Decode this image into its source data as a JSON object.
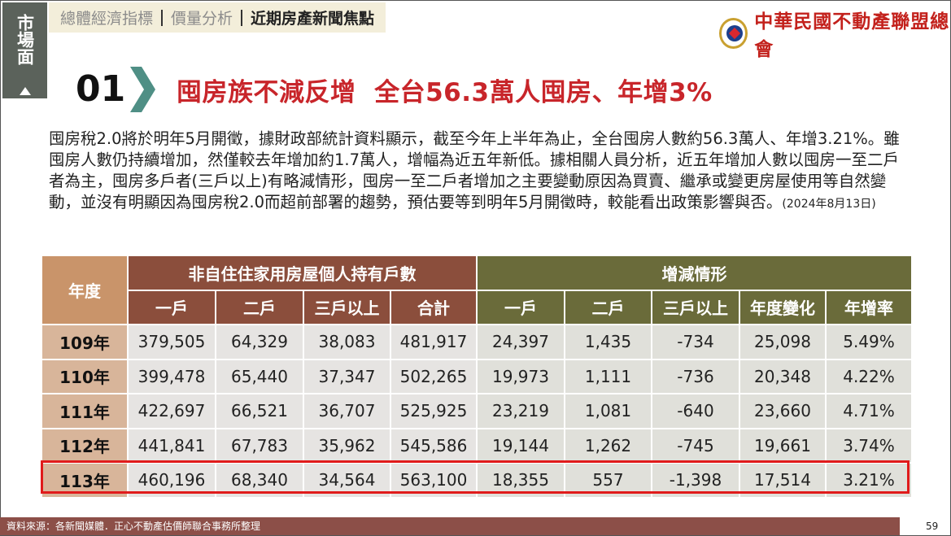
{
  "side_tag": "市場面",
  "nav": {
    "items": [
      "總體經濟指標",
      "價量分析",
      "近期房產新聞焦點"
    ],
    "active_index": 2
  },
  "logo": {
    "name": "中華民國不動產聯盟總會"
  },
  "heading": {
    "number": "01",
    "title": "囤房族不減反增  全台56.3萬人囤房、年增3%"
  },
  "body": {
    "text": "囤房稅2.0將於明年5月開徵，據財政部統計資料顯示，截至今年上半年為止，全台囤房人數約56.3萬人、年增3.21%。雖囤房人數仍持續增加，然僅較去年增加約1.7萬人，增幅為近五年新低。據相關人員分析，近五年增加人數以囤房一至二戶者為主，囤房多戶者(三戶以上)有略減情形，囤房一至二戶者增加之主要變動原因為買賣、繼承或變更房屋使用等自然變動，並沒有明顯因為囤房稅2.0而超前部署的趨勢，預估要等到明年5月開徵時，較能看出政策影響與否。",
    "date": "(2024年8月13日)"
  },
  "table": {
    "year_header": "年度",
    "group1": "非自住住家用房屋個人持有戶數",
    "group2": "增減情形",
    "cols1": [
      "一戶",
      "二戶",
      "三戶以上",
      "合計"
    ],
    "cols2": [
      "一戶",
      "二戶",
      "三戶以上",
      "年度變化",
      "年增率"
    ],
    "rows": [
      {
        "year": "109年",
        "vals": [
          "379,505",
          "64,329",
          "38,083",
          "481,917",
          "24,397",
          "1,435",
          "-734",
          "25,098",
          "5.49%"
        ]
      },
      {
        "year": "110年",
        "vals": [
          "399,478",
          "65,440",
          "37,347",
          "502,265",
          "19,973",
          "1,111",
          "-736",
          "20,348",
          "4.22%"
        ]
      },
      {
        "year": "111年",
        "vals": [
          "422,697",
          "66,521",
          "36,707",
          "525,925",
          "23,219",
          "1,081",
          "-640",
          "23,660",
          "4.71%"
        ]
      },
      {
        "year": "112年",
        "vals": [
          "441,841",
          "67,783",
          "35,962",
          "545,586",
          "19,144",
          "1,262",
          "-745",
          "19,661",
          "3.74%"
        ]
      },
      {
        "year": "113年",
        "vals": [
          "460,196",
          "68,340",
          "34,564",
          "563,100",
          "18,355",
          "557",
          "-1,398",
          "17,514",
          "3.21%"
        ]
      }
    ],
    "highlighted_row": "113年"
  },
  "footer": {
    "source": "資料來源：各新聞媒體．正心不動產估價師聯合事務所整理",
    "page": "59"
  },
  "colors": {
    "accent_red": "#c8252a",
    "teal_chevron": "#4f8f85",
    "brown_header": "#8b4e3c",
    "olive_header": "#6a6b3a",
    "highlight_border": "#e01b1b"
  }
}
